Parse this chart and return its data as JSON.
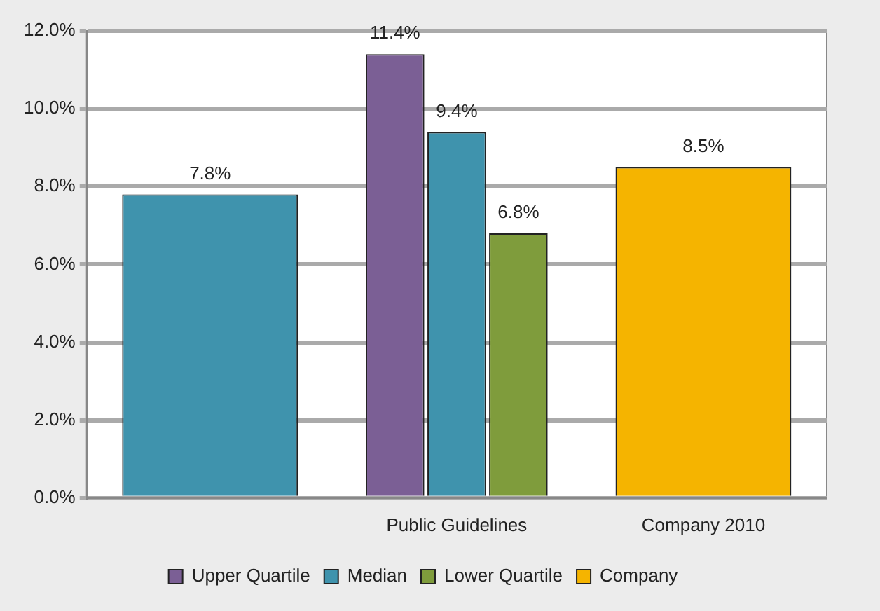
{
  "chart_data": {
    "type": "bar",
    "categories": [
      null,
      "Public Guidelines",
      "Company 2010"
    ],
    "series": [
      {
        "name": "Upper Quartile",
        "color": "#7b5f95",
        "values": [
          null,
          11.4,
          null
        ],
        "value_labels": [
          null,
          "11.4%",
          null
        ]
      },
      {
        "name": "Median",
        "color": "#3f93ad",
        "values": [
          7.8,
          9.4,
          null
        ],
        "value_labels": [
          "7.8%",
          "9.4%",
          null
        ]
      },
      {
        "name": "Lower Quartile",
        "color": "#7f9c3c",
        "values": [
          null,
          6.8,
          null
        ],
        "value_labels": [
          null,
          "6.8%",
          null
        ]
      },
      {
        "name": "Company",
        "color": "#f5b400",
        "values": [
          null,
          null,
          8.5
        ],
        "value_labels": [
          null,
          null,
          "8.5%"
        ]
      }
    ],
    "ylim": [
      0,
      12
    ],
    "yticks": [
      {
        "value": 0,
        "label": "0.0%"
      },
      {
        "value": 2,
        "label": "2.0%"
      },
      {
        "value": 4,
        "label": "4.0%"
      },
      {
        "value": 6,
        "label": "6.0%"
      },
      {
        "value": 8,
        "label": "8.0%"
      },
      {
        "value": 10,
        "label": "10.0%"
      },
      {
        "value": 12,
        "label": "12.0%"
      }
    ],
    "grid": "y",
    "legend": "bottom"
  }
}
